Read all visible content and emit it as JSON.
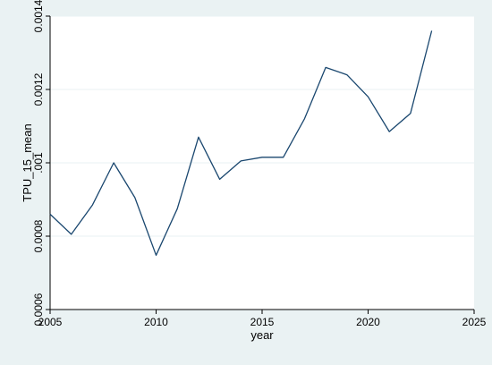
{
  "colors": {
    "outer_background": "#eaf2f3",
    "plot_background": "#ffffff",
    "gridline": "#eaf2f3",
    "line": "#1a476f",
    "axis": "#000000"
  },
  "chart_data": {
    "type": "line",
    "title": "",
    "xlabel": "year",
    "ylabel": "TPU_15_mean",
    "xlim": [
      2005,
      2025
    ],
    "ylim": [
      0.0006,
      0.0014
    ],
    "grid": true,
    "x_ticks": [
      2005,
      2010,
      2015,
      2020,
      2025
    ],
    "x_tick_labels": [
      "2005",
      "2010",
      "2015",
      "2020",
      "2025"
    ],
    "y_ticks": [
      0.0006,
      0.0008,
      0.001,
      0.0012,
      0.0014
    ],
    "y_tick_labels": [
      "0.0006",
      "0.0008",
      ".001",
      "0.0012",
      "0.0014"
    ],
    "series": [
      {
        "x": [
          2005,
          2006,
          2007,
          2008,
          2009,
          2010,
          2011,
          2012,
          2013,
          2014,
          2015,
          2016,
          2017,
          2018,
          2019,
          2020,
          2021,
          2022,
          2023
        ],
        "values": [
          0.00086,
          0.000805,
          0.000885,
          0.001,
          0.000905,
          0.000748,
          0.000875,
          0.00107,
          0.000955,
          0.001005,
          0.001015,
          0.001015,
          0.00112,
          0.00126,
          0.00124,
          0.00118,
          0.001085,
          0.001135,
          0.00136
        ]
      }
    ]
  }
}
